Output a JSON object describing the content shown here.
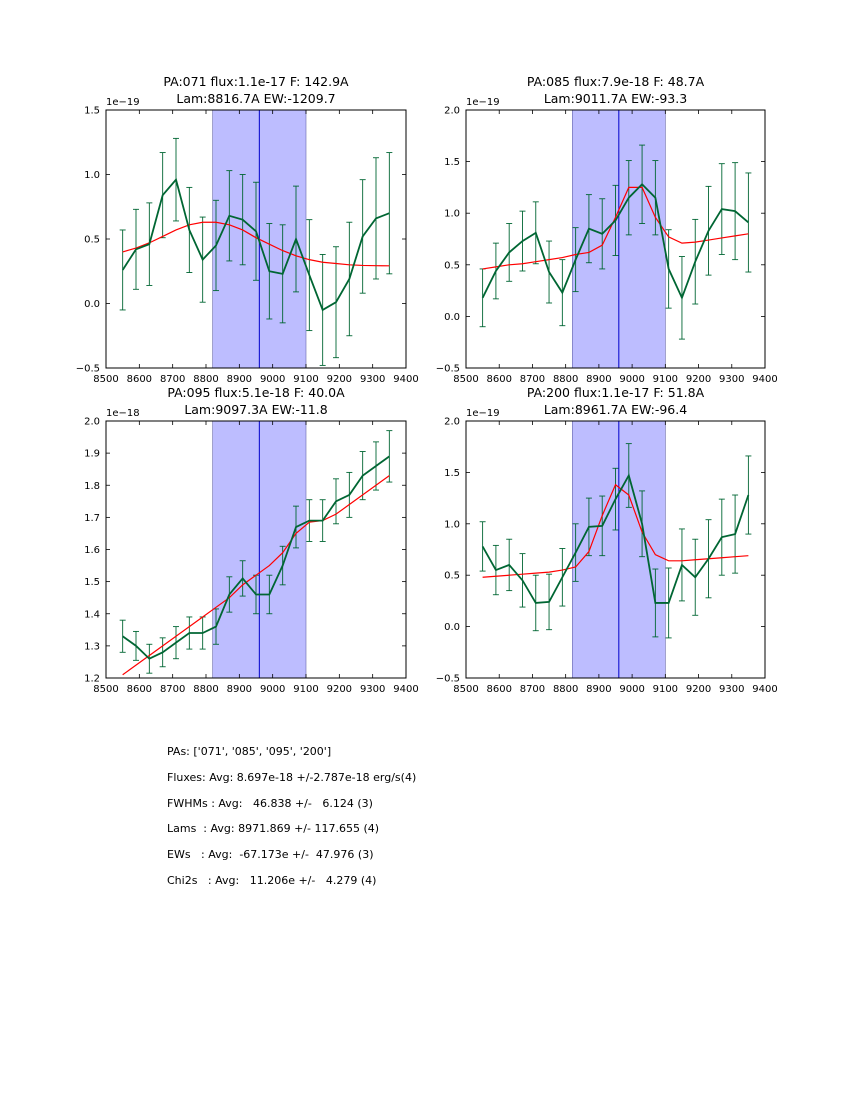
{
  "chart_data": [
    {
      "type": "line",
      "title": "PA:071 flux:1.1e-17 F: 142.9A",
      "subtitle": "Lam:8816.7A EW:-1209.7",
      "xlim": [
        8500,
        9400
      ],
      "ylim": [
        -0.5,
        1.5
      ],
      "y_scale_label": "1e−19",
      "x_ticks": [
        8500,
        8600,
        8700,
        8800,
        8900,
        9000,
        9100,
        9200,
        9300,
        9400
      ],
      "y_ticks": [
        -0.5,
        0.0,
        0.5,
        1.0,
        1.5
      ],
      "y_tick_labels": [
        "−0.5",
        "0.0",
        "0.5",
        "1.0",
        "1.5"
      ],
      "band": [
        8820,
        9100
      ],
      "vline": 8960,
      "x": [
        8550,
        8590,
        8630,
        8670,
        8710,
        8750,
        8790,
        8830,
        8870,
        8910,
        8950,
        8990,
        9030,
        9070,
        9110,
        9150,
        9190,
        9230,
        9270,
        9310,
        9350
      ],
      "series": [
        {
          "name": "data",
          "color": "#006633",
          "values": [
            0.26,
            0.42,
            0.46,
            0.84,
            0.96,
            0.57,
            0.34,
            0.45,
            0.68,
            0.65,
            0.56,
            0.25,
            0.23,
            0.5,
            0.22,
            -0.05,
            0.01,
            0.19,
            0.52,
            0.66,
            0.7
          ],
          "errors": [
            0.31,
            0.31,
            0.32,
            0.33,
            0.32,
            0.33,
            0.33,
            0.35,
            0.35,
            0.35,
            0.38,
            0.37,
            0.38,
            0.41,
            0.43,
            0.43,
            0.43,
            0.44,
            0.44,
            0.47,
            0.47
          ]
        },
        {
          "name": "fit",
          "color": "#ff0000",
          "values": [
            0.4,
            0.43,
            0.47,
            0.52,
            0.57,
            0.61,
            0.63,
            0.63,
            0.61,
            0.57,
            0.51,
            0.46,
            0.41,
            0.37,
            0.34,
            0.32,
            0.31,
            0.3,
            0.295,
            0.293,
            0.292
          ]
        }
      ]
    },
    {
      "type": "line",
      "title": "PA:085 flux:7.9e-18 F: 48.7A",
      "subtitle": "Lam:9011.7A EW:-93.3",
      "xlim": [
        8500,
        9400
      ],
      "ylim": [
        -0.5,
        2.0
      ],
      "y_scale_label": "1e−19",
      "x_ticks": [
        8500,
        8600,
        8700,
        8800,
        8900,
        9000,
        9100,
        9200,
        9300,
        9400
      ],
      "y_ticks": [
        -0.5,
        0.0,
        0.5,
        1.0,
        1.5,
        2.0
      ],
      "y_tick_labels": [
        "−0.5",
        "0.0",
        "0.5",
        "1.0",
        "1.5",
        "2.0"
      ],
      "band": [
        8820,
        9100
      ],
      "vline": 8960,
      "x": [
        8550,
        8590,
        8630,
        8670,
        8710,
        8750,
        8790,
        8830,
        8870,
        8910,
        8950,
        8990,
        9030,
        9070,
        9110,
        9150,
        9190,
        9230,
        9270,
        9310,
        9350
      ],
      "series": [
        {
          "name": "data",
          "color": "#006633",
          "values": [
            0.18,
            0.44,
            0.62,
            0.73,
            0.81,
            0.43,
            0.23,
            0.55,
            0.85,
            0.8,
            0.93,
            1.15,
            1.28,
            1.15,
            0.46,
            0.18,
            0.53,
            0.83,
            1.04,
            1.02,
            0.91
          ],
          "errors": [
            0.28,
            0.27,
            0.28,
            0.29,
            0.3,
            0.3,
            0.32,
            0.31,
            0.33,
            0.34,
            0.34,
            0.36,
            0.38,
            0.36,
            0.38,
            0.4,
            0.41,
            0.43,
            0.44,
            0.47,
            0.48
          ]
        },
        {
          "name": "fit",
          "color": "#ff0000",
          "values": [
            0.46,
            0.48,
            0.5,
            0.51,
            0.53,
            0.55,
            0.57,
            0.6,
            0.62,
            0.69,
            0.96,
            1.25,
            1.25,
            0.96,
            0.77,
            0.71,
            0.72,
            0.74,
            0.76,
            0.78,
            0.8
          ]
        }
      ]
    },
    {
      "type": "line",
      "title": "PA:095 flux:5.1e-18 F: 40.0A",
      "subtitle": "Lam:9097.3A EW:-11.8",
      "xlim": [
        8500,
        9400
      ],
      "ylim": [
        1.2,
        2.0
      ],
      "y_scale_label": "1e−18",
      "x_ticks": [
        8500,
        8600,
        8700,
        8800,
        8900,
        9000,
        9100,
        9200,
        9300,
        9400
      ],
      "y_ticks": [
        1.2,
        1.3,
        1.4,
        1.5,
        1.6,
        1.7,
        1.8,
        1.9,
        2.0
      ],
      "y_tick_labels": [
        "1.2",
        "1.3",
        "1.4",
        "1.5",
        "1.6",
        "1.7",
        "1.8",
        "1.9",
        "2.0"
      ],
      "band": [
        8820,
        9100
      ],
      "vline": 8960,
      "x": [
        8550,
        8590,
        8630,
        8670,
        8710,
        8750,
        8790,
        8830,
        8870,
        8910,
        8950,
        8990,
        9030,
        9070,
        9110,
        9150,
        9190,
        9230,
        9270,
        9310,
        9350
      ],
      "series": [
        {
          "name": "data",
          "color": "#006633",
          "values": [
            1.33,
            1.3,
            1.26,
            1.28,
            1.31,
            1.34,
            1.34,
            1.36,
            1.46,
            1.51,
            1.46,
            1.46,
            1.55,
            1.67,
            1.69,
            1.69,
            1.75,
            1.77,
            1.83,
            1.86,
            1.89
          ],
          "errors": [
            0.05,
            0.045,
            0.045,
            0.045,
            0.05,
            0.05,
            0.05,
            0.055,
            0.055,
            0.055,
            0.06,
            0.06,
            0.06,
            0.065,
            0.065,
            0.065,
            0.07,
            0.07,
            0.075,
            0.075,
            0.08
          ]
        },
        {
          "name": "fit",
          "color": "#ff0000",
          "values": [
            1.21,
            1.24,
            1.27,
            1.3,
            1.33,
            1.36,
            1.39,
            1.42,
            1.45,
            1.49,
            1.52,
            1.55,
            1.59,
            1.65,
            1.685,
            1.69,
            1.71,
            1.74,
            1.77,
            1.8,
            1.83
          ]
        }
      ]
    },
    {
      "type": "line",
      "title": "PA:200 flux:1.1e-17 F: 51.8A",
      "subtitle": "Lam:8961.7A EW:-96.4",
      "xlim": [
        8500,
        9400
      ],
      "ylim": [
        -0.5,
        2.0
      ],
      "y_scale_label": "1e−19",
      "x_ticks": [
        8500,
        8600,
        8700,
        8800,
        8900,
        9000,
        9100,
        9200,
        9300,
        9400
      ],
      "y_ticks": [
        -0.5,
        0.0,
        0.5,
        1.0,
        1.5,
        2.0
      ],
      "y_tick_labels": [
        "−0.5",
        "0.0",
        "0.5",
        "1.0",
        "1.5",
        "2.0"
      ],
      "band": [
        8820,
        9100
      ],
      "vline": 8960,
      "x": [
        8550,
        8590,
        8630,
        8670,
        8710,
        8750,
        8790,
        8830,
        8870,
        8910,
        8950,
        8990,
        9030,
        9070,
        9110,
        9150,
        9190,
        9230,
        9270,
        9310,
        9350
      ],
      "series": [
        {
          "name": "data",
          "color": "#006633",
          "values": [
            0.78,
            0.55,
            0.6,
            0.45,
            0.23,
            0.24,
            0.48,
            0.72,
            0.97,
            0.98,
            1.24,
            1.47,
            1.0,
            0.23,
            0.23,
            0.6,
            0.48,
            0.66,
            0.87,
            0.9,
            1.28
          ],
          "errors": [
            0.24,
            0.24,
            0.25,
            0.26,
            0.27,
            0.27,
            0.28,
            0.28,
            0.28,
            0.29,
            0.3,
            0.31,
            0.32,
            0.33,
            0.34,
            0.35,
            0.37,
            0.38,
            0.37,
            0.38,
            0.38
          ]
        },
        {
          "name": "fit",
          "color": "#ff0000",
          "values": [
            0.48,
            0.49,
            0.5,
            0.51,
            0.52,
            0.53,
            0.55,
            0.58,
            0.73,
            1.08,
            1.38,
            1.28,
            0.92,
            0.7,
            0.64,
            0.64,
            0.65,
            0.66,
            0.67,
            0.68,
            0.69
          ]
        }
      ]
    }
  ],
  "stats": [
    "PAs: ['071', '085', '095', '200']",
    "Fluxes: Avg: 8.697e-18 +/-2.787e-18 erg/s(4)",
    "FWHMs : Avg:   46.838 +/-   6.124 (3)",
    "Lams  : Avg: 8971.869 +/- 117.655 (4)",
    "EWs   : Avg:  -67.173e +/-  47.976 (3)",
    "Chi2s   : Avg:   11.206e +/-   4.279 (4)"
  ]
}
